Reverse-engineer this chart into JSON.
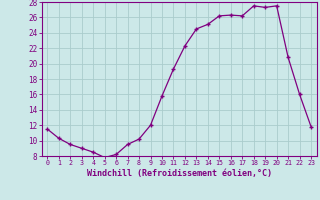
{
  "hours": [
    0,
    1,
    2,
    3,
    4,
    5,
    6,
    7,
    8,
    9,
    10,
    11,
    12,
    13,
    14,
    15,
    16,
    17,
    18,
    19,
    20,
    21,
    22,
    23
  ],
  "values": [
    11.5,
    10.3,
    9.5,
    9.0,
    8.5,
    7.8,
    8.2,
    9.5,
    10.2,
    12.0,
    15.8,
    19.3,
    22.3,
    24.5,
    25.1,
    26.2,
    26.3,
    26.2,
    27.5,
    27.3,
    27.5,
    20.8,
    16.0,
    11.8
  ],
  "line_color": "#800080",
  "marker_color": "#800080",
  "bg_color": "#cce8e8",
  "grid_color": "#aacccc",
  "xlabel": "Windchill (Refroidissement éolien,°C)",
  "ylim": [
    8,
    28
  ],
  "xlim": [
    -0.5,
    23.5
  ],
  "yticks": [
    8,
    10,
    12,
    14,
    16,
    18,
    20,
    22,
    24,
    26,
    28
  ],
  "xticks": [
    0,
    1,
    2,
    3,
    4,
    5,
    6,
    7,
    8,
    9,
    10,
    11,
    12,
    13,
    14,
    15,
    16,
    17,
    18,
    19,
    20,
    21,
    22,
    23
  ],
  "xlabel_fontsize": 6.0,
  "xtick_fontsize": 4.8,
  "ytick_fontsize": 5.5
}
